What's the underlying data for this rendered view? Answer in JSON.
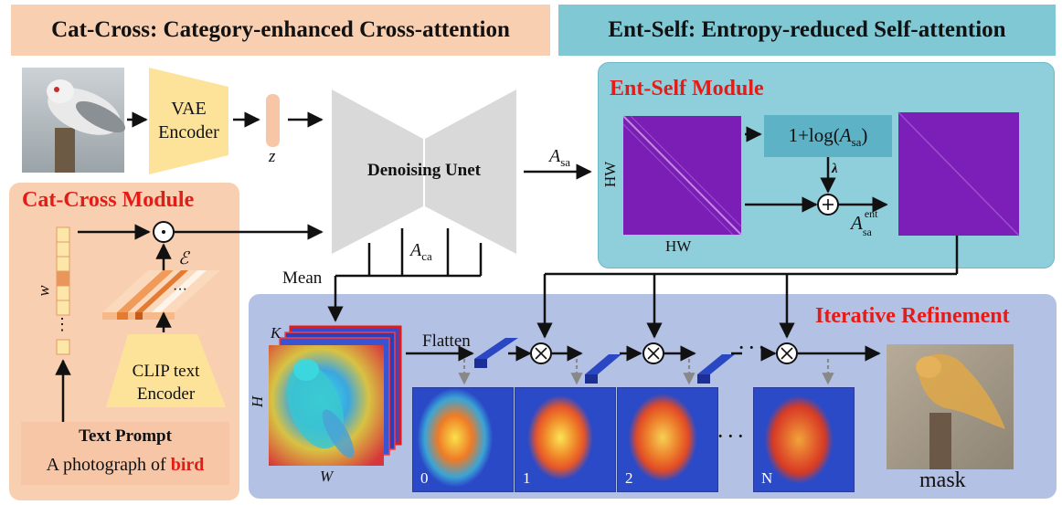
{
  "banners": {
    "left": "Cat-Cross: Category-enhanced Cross-attention",
    "right": "Ent-Self: Entropy-reduced Self-attention"
  },
  "colors": {
    "cat_cross_bg": "#f8cfb1",
    "ent_self_bg": "#8fcfdc",
    "ent_banner_bg": "#7fc8d4",
    "refine_bg": "#b3c1e4",
    "vae_fill": "#fde39a",
    "title_red": "#e41b17",
    "attn_purple": "#7b1fb8",
    "log_box": "#5db2c6"
  },
  "cat_cross": {
    "title": "Cat-Cross Module",
    "w_label": "w",
    "epsilon_label": "ℰ",
    "clip_text_label": "CLIP text",
    "clip_encoder_label": "Encoder",
    "text_prompt_title": "Text Prompt",
    "prompt_prefix": "A photograph of ",
    "prompt_class": "bird"
  },
  "pipeline": {
    "vae_line1": "VAE",
    "vae_line2": "Encoder",
    "z_label": "z",
    "unet_label": "Denoising Unet",
    "a_sa_label": "A",
    "a_sa_sub": "sa",
    "a_ca_label": "A",
    "a_ca_sub": "ca",
    "mean_label": "Mean"
  },
  "ent_self": {
    "title": "Ent-Self Module",
    "hw_left": "HW",
    "hw_bottom": "HW",
    "log_prefix": "1+log(",
    "log_var": "A",
    "log_sub": "sa",
    "log_suffix": ")",
    "lambda_label": "λ",
    "a_ent_var": "A",
    "a_ent_sub": "sa",
    "a_ent_sup": "ent"
  },
  "refinement": {
    "title": "Iterative Refinement",
    "k_label": "K",
    "h_label": "H",
    "w_label": "W",
    "flatten_label": "Flatten",
    "step_labels": [
      "0",
      "1",
      "2",
      "N"
    ],
    "ellipsis": "· · ·",
    "mask_label": "mask"
  }
}
